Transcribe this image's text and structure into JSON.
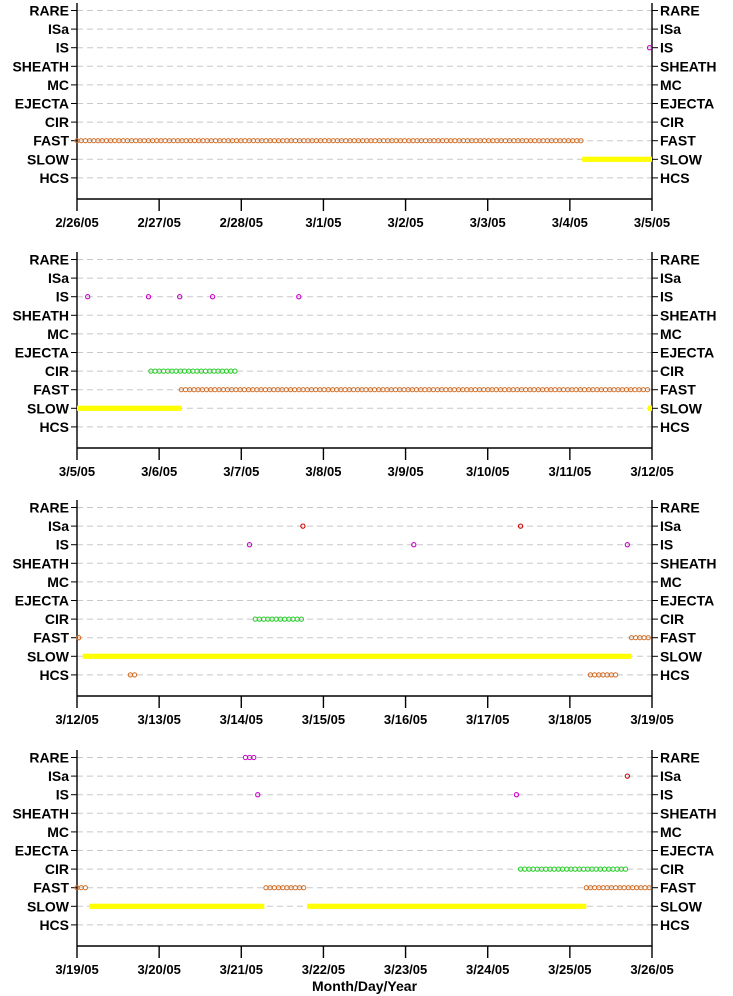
{
  "chart_data": [
    {
      "type": "scatter",
      "xlabel": "",
      "categories": [
        "RARE",
        "ISa",
        "IS",
        "SHEATH",
        "MC",
        "EJECTA",
        "CIR",
        "FAST",
        "SLOW",
        "HCS"
      ],
      "x_ticks": [
        "2/26/05",
        "2/27/05",
        "2/28/05",
        "3/1/05",
        "3/2/05",
        "3/3/05",
        "3/4/05",
        "3/5/05"
      ],
      "xlim": [
        0,
        7
      ],
      "series": [
        {
          "category": "FAST",
          "color": "#d2691e",
          "ranges": [
            [
              0,
              6.15
            ]
          ],
          "points": []
        },
        {
          "category": "SLOW",
          "color": "#ffff00",
          "ranges": [
            [
              6.15,
              7.0
            ]
          ],
          "points": []
        },
        {
          "category": "IS",
          "color": "#cc00cc",
          "ranges": [],
          "points": [
            6.97
          ]
        }
      ]
    },
    {
      "type": "scatter",
      "xlabel": "",
      "categories": [
        "RARE",
        "ISa",
        "IS",
        "SHEATH",
        "MC",
        "EJECTA",
        "CIR",
        "FAST",
        "SLOW",
        "HCS"
      ],
      "x_ticks": [
        "3/5/05",
        "3/6/05",
        "3/7/05",
        "3/8/05",
        "3/9/05",
        "3/10/05",
        "3/11/05",
        "3/12/05"
      ],
      "xlim": [
        0,
        7
      ],
      "series": [
        {
          "category": "SLOW",
          "color": "#ffff00",
          "ranges": [
            [
              0,
              1.27
            ],
            [
              6.95,
              7.0
            ]
          ],
          "points": []
        },
        {
          "category": "FAST",
          "color": "#d2691e",
          "ranges": [
            [
              1.27,
              6.95
            ]
          ],
          "points": []
        },
        {
          "category": "CIR",
          "color": "#22cc22",
          "ranges": [
            [
              0.9,
              1.95
            ]
          ],
          "points": []
        },
        {
          "category": "IS",
          "color": "#cc00cc",
          "ranges": [],
          "points": [
            0.13,
            0.87,
            1.25,
            1.65,
            2.7
          ]
        }
      ]
    },
    {
      "type": "scatter",
      "xlabel": "",
      "categories": [
        "RARE",
        "ISa",
        "IS",
        "SHEATH",
        "MC",
        "EJECTA",
        "CIR",
        "FAST",
        "SLOW",
        "HCS"
      ],
      "x_ticks": [
        "3/12/05",
        "3/13/05",
        "3/14/05",
        "3/15/05",
        "3/16/05",
        "3/17/05",
        "3/18/05",
        "3/19/05"
      ],
      "xlim": [
        0,
        7
      ],
      "series": [
        {
          "category": "SLOW",
          "color": "#ffff00",
          "ranges": [
            [
              0.07,
              6.75
            ]
          ],
          "points": []
        },
        {
          "category": "FAST",
          "color": "#d2691e",
          "ranges": [
            [
              6.75,
              7.0
            ]
          ],
          "points": [
            0.02
          ]
        },
        {
          "category": "HCS",
          "color": "#d2691e",
          "ranges": [
            [
              0.65,
              0.72
            ],
            [
              6.25,
              6.6
            ]
          ],
          "points": []
        },
        {
          "category": "CIR",
          "color": "#22cc22",
          "ranges": [
            [
              2.17,
              2.75
            ]
          ],
          "points": []
        },
        {
          "category": "IS",
          "color": "#cc00cc",
          "ranges": [],
          "points": [
            2.1,
            4.1,
            6.7
          ]
        },
        {
          "category": "ISa",
          "color": "#cc0000",
          "ranges": [],
          "points": [
            2.75,
            5.4
          ]
        }
      ]
    },
    {
      "type": "scatter",
      "xlabel": "Month/Day/Year",
      "categories": [
        "RARE",
        "ISa",
        "IS",
        "SHEATH",
        "MC",
        "EJECTA",
        "CIR",
        "FAST",
        "SLOW",
        "HCS"
      ],
      "x_ticks": [
        "3/19/05",
        "3/20/05",
        "3/21/05",
        "3/22/05",
        "3/23/05",
        "3/24/05",
        "3/25/05",
        "3/26/05"
      ],
      "xlim": [
        0,
        7
      ],
      "series": [
        {
          "category": "FAST",
          "color": "#d2691e",
          "ranges": [
            [
              0,
              0.15
            ],
            [
              2.3,
              2.8
            ],
            [
              6.2,
              7.0
            ]
          ],
          "points": []
        },
        {
          "category": "SLOW",
          "color": "#ffff00",
          "ranges": [
            [
              0.15,
              2.28
            ],
            [
              2.8,
              6.2
            ]
          ],
          "points": []
        },
        {
          "category": "RARE",
          "color": "#cc00cc",
          "ranges": [
            [
              2.05,
              2.2
            ]
          ],
          "points": []
        },
        {
          "category": "IS",
          "color": "#cc00cc",
          "ranges": [],
          "points": [
            2.2,
            5.35
          ]
        },
        {
          "category": "CIR",
          "color": "#22cc22",
          "ranges": [
            [
              5.4,
              6.7
            ]
          ],
          "points": []
        },
        {
          "category": "ISa",
          "color": "#cc0000",
          "ranges": [],
          "points": [
            6.7
          ]
        }
      ]
    }
  ]
}
